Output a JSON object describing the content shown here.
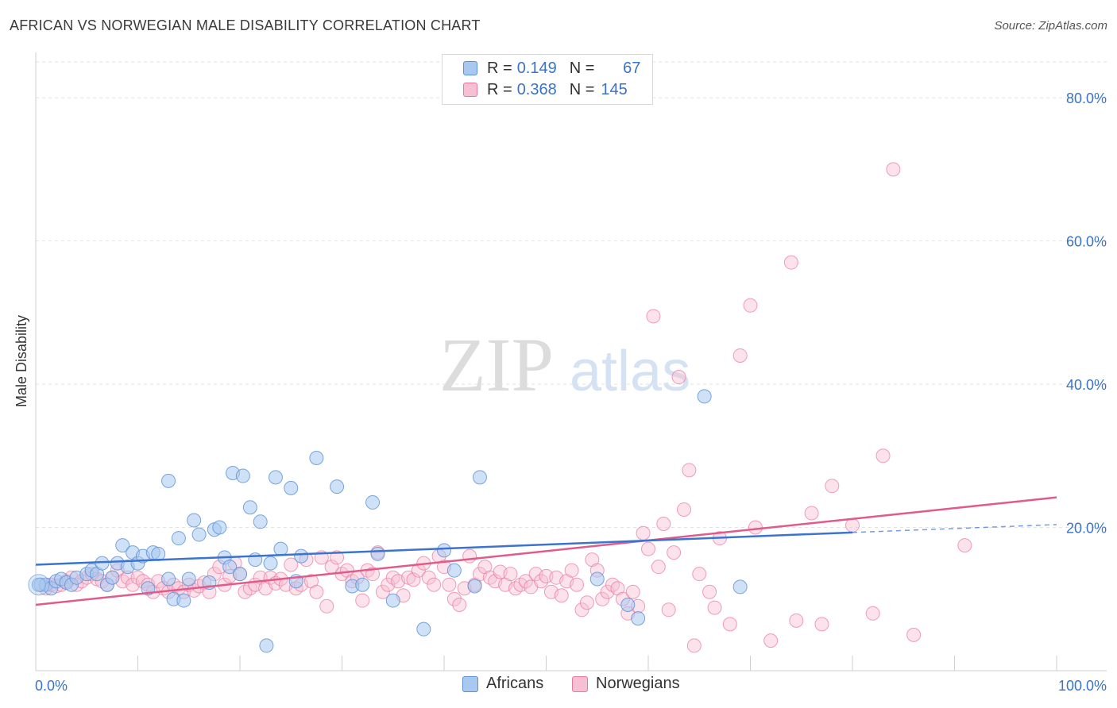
{
  "title": "AFRICAN VS NORWEGIAN MALE DISABILITY CORRELATION CHART",
  "source": "Source: ZipAtlas.com",
  "watermark": {
    "zip": "ZIP",
    "atlas": "atlas"
  },
  "legend": {
    "rows": [
      {
        "r_key": "R =",
        "r_val": "0.149",
        "n_key": "N =",
        "n_val": "67"
      },
      {
        "r_key": "R =",
        "r_val": "0.368",
        "n_key": "N =",
        "n_val": "145"
      }
    ]
  },
  "bottom_legend": {
    "africans": "Africans",
    "norwegians": "Norwegians"
  },
  "colors": {
    "blue_fill": "#a8c8f0",
    "blue_stroke": "#5b8fd6",
    "blue_line": "#3b73d1",
    "pink_fill": "#f7bfd2",
    "pink_stroke": "#e8789e",
    "pink_line": "#e05a8a",
    "tick_text": "#3a73c8",
    "grid": "#e2e2e2"
  },
  "chart_data": {
    "type": "scatter",
    "title": "AFRICAN VS NORWEGIAN MALE DISABILITY CORRELATION CHART",
    "xlabel": "",
    "ylabel": "Male Disability",
    "xlim": [
      0,
      100
    ],
    "ylim": [
      0,
      85
    ],
    "x_tick_labels": [
      {
        "value": 0,
        "label": "0.0%"
      },
      {
        "value": 100,
        "label": "100.0%"
      }
    ],
    "y_tick_labels": [
      {
        "value": 20,
        "label": "20.0%"
      },
      {
        "value": 40,
        "label": "40.0%"
      },
      {
        "value": 60,
        "label": "60.0%"
      },
      {
        "value": 80,
        "label": "80.0%"
      }
    ],
    "x_minor_ticks": [
      0,
      10,
      20,
      30,
      40,
      50,
      60,
      70,
      80,
      90,
      100
    ],
    "series": [
      {
        "name": "Africans",
        "R": 0.149,
        "N": 67,
        "trend": {
          "x0": 0,
          "y0": 14.8,
          "x1": 80,
          "y1": 19.3,
          "dash_x1": 100,
          "dash_y1": 20.4
        },
        "points": [
          [
            0.5,
            12
          ],
          [
            1,
            12
          ],
          [
            1.5,
            11.5
          ],
          [
            2,
            12.5
          ],
          [
            2.5,
            12.8
          ],
          [
            3,
            12.3
          ],
          [
            3.5,
            12
          ],
          [
            4,
            13
          ],
          [
            5,
            13.5
          ],
          [
            5.5,
            14
          ],
          [
            6,
            13.5
          ],
          [
            6.5,
            15
          ],
          [
            7,
            12
          ],
          [
            7.5,
            13
          ],
          [
            8,
            15
          ],
          [
            8.5,
            17.5
          ],
          [
            9,
            14.5
          ],
          [
            9.5,
            16.5
          ],
          [
            10,
            15
          ],
          [
            10.5,
            16
          ],
          [
            11,
            11.5
          ],
          [
            11.5,
            16.5
          ],
          [
            12,
            16.3
          ],
          [
            13,
            12.8
          ],
          [
            13,
            26.5
          ],
          [
            13.5,
            10
          ],
          [
            14,
            18.5
          ],
          [
            14.5,
            9.8
          ],
          [
            15,
            12.8
          ],
          [
            15.5,
            21
          ],
          [
            16,
            19
          ],
          [
            17,
            12.3
          ],
          [
            17.5,
            19.7
          ],
          [
            18,
            20
          ],
          [
            18.5,
            15.8
          ],
          [
            19,
            14.5
          ],
          [
            19.3,
            27.6
          ],
          [
            20,
            13.5
          ],
          [
            20.3,
            27.2
          ],
          [
            21,
            22.8
          ],
          [
            21.5,
            15.5
          ],
          [
            22,
            20.8
          ],
          [
            22.6,
            3.5
          ],
          [
            23,
            15
          ],
          [
            23.5,
            27
          ],
          [
            24,
            17
          ],
          [
            25,
            25.5
          ],
          [
            25.5,
            12.5
          ],
          [
            26,
            16
          ],
          [
            27.5,
            29.7
          ],
          [
            29.5,
            25.7
          ],
          [
            31,
            11.8
          ],
          [
            32,
            12
          ],
          [
            33,
            23.5
          ],
          [
            33.5,
            16.3
          ],
          [
            35,
            9.8
          ],
          [
            38,
            5.8
          ],
          [
            40,
            16.8
          ],
          [
            41,
            14
          ],
          [
            43,
            11.8
          ],
          [
            43.5,
            27
          ],
          [
            55,
            12.8
          ],
          [
            58,
            9.2
          ],
          [
            59,
            7.3
          ],
          [
            65.5,
            38.3
          ],
          [
            69,
            11.7
          ],
          [
            0.3,
            12
          ]
        ]
      },
      {
        "name": "Norwegians",
        "R": 0.368,
        "N": 145,
        "trend": {
          "x0": 0,
          "y0": 9.2,
          "x1": 100,
          "y1": 24.2
        },
        "points": [
          [
            0.5,
            12
          ],
          [
            1,
            11.5
          ],
          [
            1.5,
            12
          ],
          [
            2,
            11.8
          ],
          [
            2.5,
            12
          ],
          [
            3,
            12.5
          ],
          [
            3.5,
            13
          ],
          [
            4,
            12
          ],
          [
            4.5,
            12.5
          ],
          [
            5,
            13
          ],
          [
            5.5,
            13.5
          ],
          [
            6,
            12.8
          ],
          [
            6.5,
            12.5
          ],
          [
            7,
            12
          ],
          [
            7.5,
            13
          ],
          [
            8,
            14
          ],
          [
            8.5,
            12.5
          ],
          [
            9,
            13
          ],
          [
            9.5,
            12
          ],
          [
            10,
            13
          ],
          [
            10.5,
            12.5
          ],
          [
            11,
            12
          ],
          [
            11.5,
            11
          ],
          [
            12,
            12.5
          ],
          [
            12.5,
            11.5
          ],
          [
            13,
            11
          ],
          [
            13.5,
            12
          ],
          [
            14,
            11.5
          ],
          [
            14.5,
            11
          ],
          [
            15,
            12
          ],
          [
            15.5,
            11.2
          ],
          [
            16,
            11.8
          ],
          [
            16.5,
            12.3
          ],
          [
            17,
            11
          ],
          [
            17.5,
            13.5
          ],
          [
            18,
            14.5
          ],
          [
            18.5,
            12
          ],
          [
            19,
            13.2
          ],
          [
            19.5,
            15
          ],
          [
            20,
            13.5
          ],
          [
            20.5,
            11
          ],
          [
            21,
            11.5
          ],
          [
            21.5,
            12
          ],
          [
            22,
            13
          ],
          [
            22.5,
            11.5
          ],
          [
            23,
            13
          ],
          [
            23.5,
            12.2
          ],
          [
            24,
            12.8
          ],
          [
            24.5,
            12
          ],
          [
            25,
            14.8
          ],
          [
            25.5,
            11.5
          ],
          [
            26,
            12
          ],
          [
            26.5,
            15.5
          ],
          [
            27,
            12.5
          ],
          [
            27.5,
            11
          ],
          [
            28,
            15.8
          ],
          [
            28.5,
            9
          ],
          [
            29,
            14.5
          ],
          [
            29.5,
            15.8
          ],
          [
            30,
            13.5
          ],
          [
            30.5,
            14
          ],
          [
            31,
            12.5
          ],
          [
            31.5,
            13
          ],
          [
            32,
            9.8
          ],
          [
            32.5,
            14
          ],
          [
            33,
            13.5
          ],
          [
            33.5,
            16.5
          ],
          [
            34,
            11
          ],
          [
            34.5,
            12
          ],
          [
            35,
            13
          ],
          [
            35.5,
            12.5
          ],
          [
            36,
            10.5
          ],
          [
            36.5,
            13
          ],
          [
            37,
            12.7
          ],
          [
            37.5,
            14
          ],
          [
            38,
            15
          ],
          [
            38.5,
            13
          ],
          [
            39,
            12
          ],
          [
            39.5,
            16
          ],
          [
            40,
            14.5
          ],
          [
            40.5,
            12
          ],
          [
            41,
            10
          ],
          [
            41.5,
            9.2
          ],
          [
            42,
            11.5
          ],
          [
            42.5,
            16
          ],
          [
            43,
            12
          ],
          [
            43.5,
            13.5
          ],
          [
            44,
            14.5
          ],
          [
            44.5,
            13
          ],
          [
            45,
            12.5
          ],
          [
            45.5,
            13.8
          ],
          [
            46,
            12
          ],
          [
            46.5,
            13.5
          ],
          [
            47,
            11.5
          ],
          [
            47.5,
            12
          ],
          [
            48,
            12.5
          ],
          [
            48.5,
            11.7
          ],
          [
            49,
            13.5
          ],
          [
            49.5,
            12.5
          ],
          [
            50,
            13.2
          ],
          [
            50.5,
            11
          ],
          [
            51,
            13
          ],
          [
            51.5,
            10.5
          ],
          [
            52,
            12.5
          ],
          [
            52.5,
            14
          ],
          [
            53,
            12
          ],
          [
            53.5,
            8.5
          ],
          [
            54,
            9.5
          ],
          [
            54.5,
            15.5
          ],
          [
            55,
            14
          ],
          [
            55.5,
            10
          ],
          [
            56,
            11
          ],
          [
            56.5,
            12
          ],
          [
            57,
            11.5
          ],
          [
            57.5,
            10
          ],
          [
            58,
            8
          ],
          [
            58.5,
            11
          ],
          [
            59,
            9
          ],
          [
            59.5,
            19.2
          ],
          [
            60,
            17
          ],
          [
            60.5,
            49.5
          ],
          [
            61,
            14.5
          ],
          [
            61.5,
            20.5
          ],
          [
            62,
            8.5
          ],
          [
            62.5,
            16.5
          ],
          [
            63,
            41
          ],
          [
            63.5,
            22.5
          ],
          [
            64,
            28
          ],
          [
            64.5,
            3.5
          ],
          [
            65,
            13.5
          ],
          [
            66,
            11
          ],
          [
            66.5,
            8.8
          ],
          [
            67,
            18.5
          ],
          [
            68,
            6.5
          ],
          [
            69,
            44
          ],
          [
            70,
            51
          ],
          [
            70.5,
            20
          ],
          [
            72,
            4.2
          ],
          [
            74,
            57
          ],
          [
            74.5,
            7
          ],
          [
            76,
            22
          ],
          [
            77,
            6.5
          ],
          [
            78,
            25.8
          ],
          [
            80,
            20.3
          ],
          [
            82,
            8
          ],
          [
            83,
            30
          ],
          [
            84,
            70
          ],
          [
            86,
            5
          ],
          [
            91,
            17.5
          ]
        ]
      }
    ]
  }
}
